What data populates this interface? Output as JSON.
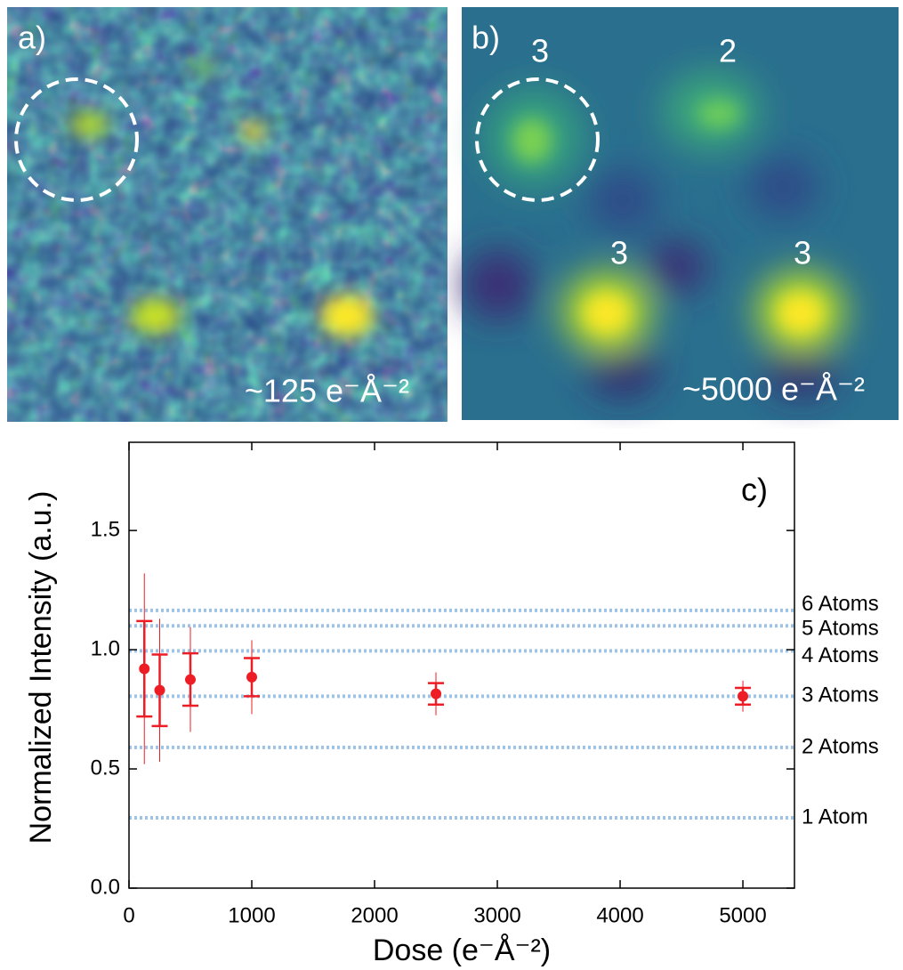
{
  "panels": [
    {
      "label": "a)",
      "dose": "~125 e⁻Å⁻²"
    },
    {
      "label": "b)",
      "dose": "~5000 e⁻Å⁻²",
      "annotations": [
        "3",
        "2",
        "3",
        "3"
      ]
    }
  ],
  "chart_data": {
    "type": "errorbar",
    "panel_label": "c)",
    "xlabel": "Dose (e⁻Å⁻²)",
    "ylabel": "Normalized Intensity (a.u.)",
    "x": [
      125,
      250,
      500,
      1000,
      2500,
      5000
    ],
    "series": [
      {
        "color": "#ee1c25",
        "values": [
          0.92,
          0.83,
          0.875,
          0.885,
          0.815,
          0.805
        ],
        "errors": [
          0.2,
          0.15,
          0.11,
          0.08,
          0.045,
          0.035
        ],
        "outer_errors": [
          0.4,
          0.3,
          0.22,
          0.155,
          0.09,
          0.065
        ]
      }
    ],
    "xlim": [
      0,
      5420
    ],
    "ylim": [
      0,
      1.87
    ],
    "xticks": [
      0,
      1000,
      2000,
      3000,
      4000,
      5000
    ],
    "yticks": [
      {
        "value": 0,
        "label": "0.0"
      },
      0.5,
      {
        "value": 1,
        "label": "1.0"
      },
      1.5
    ],
    "reference_color": "#9dc3e6",
    "reference_lines": [
      {
        "label": "6 Atoms",
        "value": 1.165
      },
      {
        "label": "5 Atoms",
        "value": 1.1
      },
      {
        "label": "4 Atoms",
        "value": 0.995
      },
      {
        "label": "3 Atoms",
        "value": 0.805
      },
      {
        "label": "2 Atoms",
        "value": 0.59
      },
      {
        "label": "1 Atom",
        "value": 0.295
      }
    ]
  }
}
